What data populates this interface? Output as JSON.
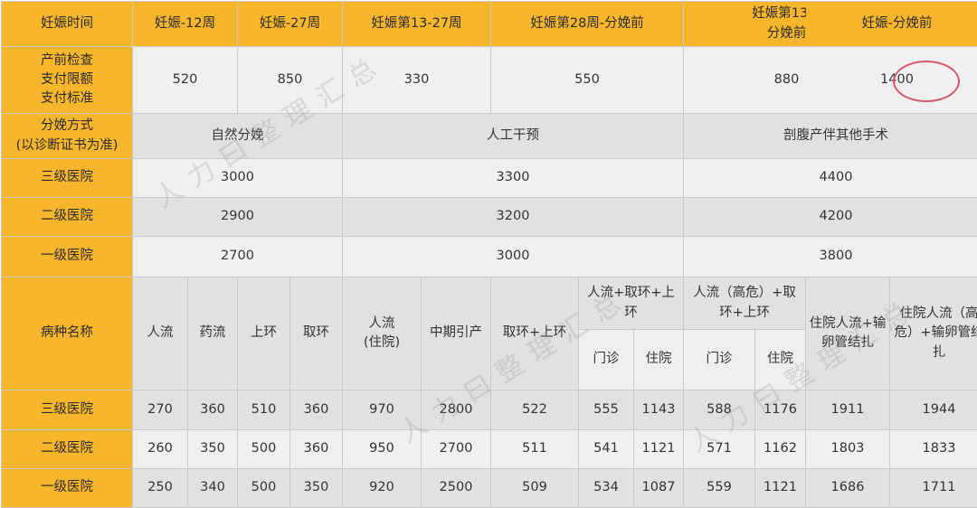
{
  "header": {
    "label": "妊娠时间",
    "periods": [
      "妊娠-12周",
      "妊娠-27周",
      "妊娠第13-27周",
      "妊娠第28周-分娩前",
      "妊娠第13周\n分娩前",
      "妊娠-分娩前"
    ]
  },
  "prenatal": {
    "label": "产前检查\n支付限额\n支付标准",
    "values": [
      "520",
      "850",
      "330",
      "550",
      "880",
      "1400"
    ],
    "highlighted_value": "1400",
    "highlight_color": "#d9556b"
  },
  "delivery": {
    "label": "分娩方式\n(以诊断证书为准)",
    "methods": [
      "自然分娩",
      "人工干预",
      "剖腹产伴其他手术"
    ],
    "rows": [
      {
        "name": "三级医院",
        "values": [
          "3000",
          "3300",
          "4400"
        ]
      },
      {
        "name": "二级医院",
        "values": [
          "2900",
          "3200",
          "4200"
        ]
      },
      {
        "name": "一级医院",
        "values": [
          "2700",
          "3000",
          "3800"
        ]
      }
    ]
  },
  "procedures": {
    "label": "病种名称",
    "columns": [
      "人流",
      "药流",
      "上环",
      "取环",
      "人流\n(住院)",
      "中期引产",
      "取环+上环",
      "人流+取环+上\n环",
      "人流（高危）+取\n环+上环",
      "住院人流+输\n卵管结扎",
      "住院人流（高\n危）+输卵管结\n扎"
    ],
    "subcolumns": [
      "门诊",
      "住院",
      "门诊",
      "住院"
    ],
    "rows": [
      {
        "name": "三级医院",
        "values": [
          "270",
          "360",
          "510",
          "360",
          "970",
          "2800",
          "522",
          "555",
          "1143",
          "588",
          "1176",
          "1911",
          "1944"
        ]
      },
      {
        "name": "二级医院",
        "values": [
          "260",
          "350",
          "500",
          "360",
          "950",
          "2700",
          "511",
          "541",
          "1121",
          "571",
          "1162",
          "1803",
          "1833"
        ]
      },
      {
        "name": "一级医院",
        "values": [
          "250",
          "340",
          "500",
          "350",
          "920",
          "2500",
          "509",
          "534",
          "1087",
          "559",
          "1121",
          "1686",
          "1711"
        ]
      }
    ]
  },
  "watermark": "人力曰整理汇总",
  "colors": {
    "header": "#f8b62d",
    "cell_light": "#f0f0ef",
    "cell_dark": "#e1e1e0"
  }
}
